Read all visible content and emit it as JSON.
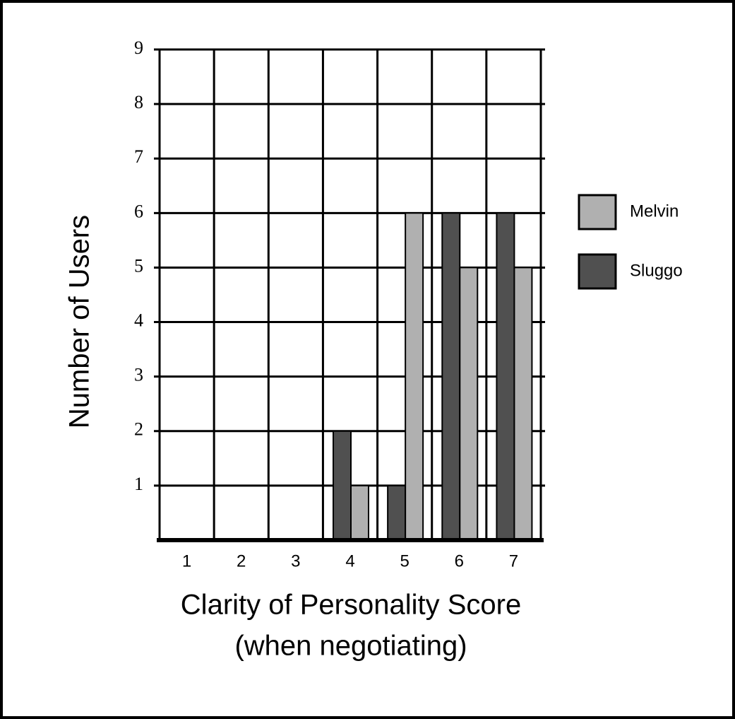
{
  "chart_data": {
    "type": "bar",
    "x_label": [
      "Clarity of Personality Score",
      "(when negotiating)"
    ],
    "y_label": "Number of Users",
    "categories": [
      "1",
      "2",
      "3",
      "4",
      "5",
      "6",
      "7"
    ],
    "series": [
      {
        "name": "Melvin",
        "color": "#b0b0b0",
        "values": [
          0,
          0,
          0,
          1,
          6,
          5,
          5
        ]
      },
      {
        "name": "Sluggo",
        "color": "#505050",
        "values": [
          0,
          0,
          0,
          2,
          1,
          6,
          6
        ]
      }
    ],
    "ylim": [
      0,
      9
    ],
    "yticks": [
      1,
      2,
      3,
      4,
      5,
      6,
      7,
      8,
      9
    ],
    "grid": true,
    "legend": "right"
  }
}
